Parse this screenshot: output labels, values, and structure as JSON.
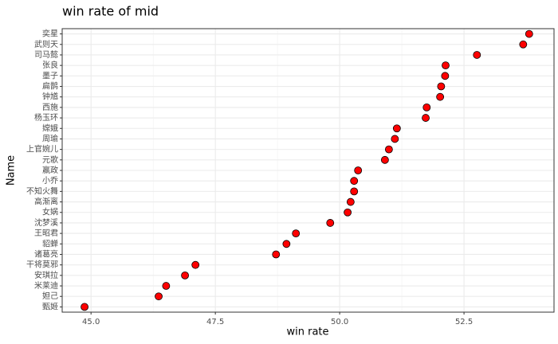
{
  "chart_data": {
    "type": "dot",
    "title": "win rate of mid",
    "x_label": "win rate",
    "y_label": "Name",
    "categories": [
      "奕星",
      "武则天",
      "司马懿",
      "张良",
      "墨子",
      "扁鹊",
      "钟馗",
      "西施",
      "杨玉环",
      "嫦娥",
      "周瑜",
      "上官婉儿",
      "元歌",
      "嬴政",
      "小乔",
      "不知火舞",
      "高渐离",
      "女娲",
      "沈梦溪",
      "王昭君",
      "貂蝉",
      "诸葛亮",
      "干将莫邪",
      "安琪拉",
      "米莱迪",
      "妲己",
      "甄姬"
    ],
    "values": [
      53.81,
      53.69,
      52.76,
      52.13,
      52.12,
      52.04,
      52.02,
      51.75,
      51.73,
      51.15,
      51.11,
      50.99,
      50.91,
      50.37,
      50.29,
      50.29,
      50.22,
      50.16,
      49.81,
      49.12,
      48.93,
      48.72,
      47.1,
      46.89,
      46.51,
      46.36,
      44.87
    ],
    "color": "#ff0000",
    "xlim": [
      44.42,
      54.31
    ],
    "xticks": [
      {
        "value": 45,
        "label": "45.0"
      },
      {
        "value": 47.5,
        "label": "47.5"
      },
      {
        "value": 50,
        "label": "50.0"
      },
      {
        "value": 52.5,
        "label": "52.5"
      }
    ],
    "grid": true
  }
}
